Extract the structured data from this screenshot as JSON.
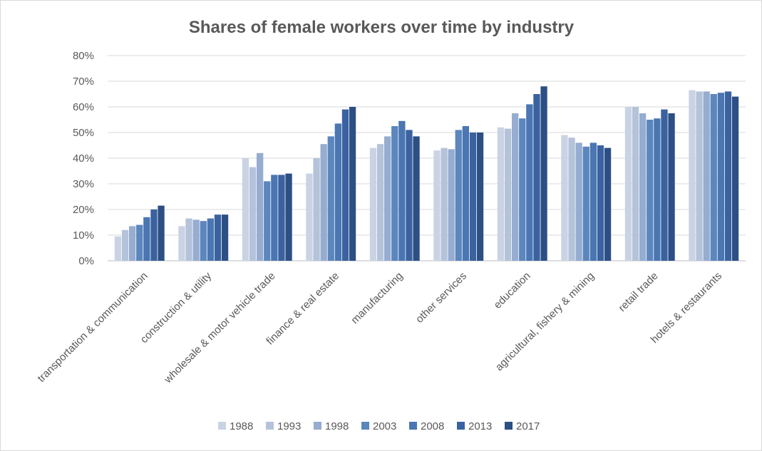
{
  "chart_data": {
    "type": "bar",
    "title": "Shares of female workers over time by industry",
    "xlabel": "",
    "ylabel": "",
    "ylim": [
      0,
      0.8
    ],
    "yticks": [
      0,
      0.1,
      0.2,
      0.3,
      0.4,
      0.5,
      0.6,
      0.7,
      0.8
    ],
    "ytick_labels": [
      "0%",
      "10%",
      "20%",
      "30%",
      "40%",
      "50%",
      "60%",
      "70%",
      "80%"
    ],
    "grid": true,
    "legend_position": "bottom",
    "categories": [
      "transportation & communication",
      "construction & utility",
      "wholesale & motor vehicle trade",
      "finance & real estate",
      "manufacturing",
      "other services",
      "education",
      "agricultural, fishery & mining",
      "retail trade",
      "hotels & restaurants"
    ],
    "series": [
      {
        "name": "1988",
        "color": "#c9d3e3",
        "values": [
          0.095,
          0.135,
          0.4,
          0.34,
          0.44,
          0.43,
          0.52,
          0.49,
          0.6,
          0.665
        ]
      },
      {
        "name": "1993",
        "color": "#b4c2da",
        "values": [
          0.12,
          0.165,
          0.365,
          0.4,
          0.455,
          0.44,
          0.515,
          0.48,
          0.6,
          0.66
        ]
      },
      {
        "name": "1998",
        "color": "#96acd0",
        "values": [
          0.135,
          0.16,
          0.42,
          0.455,
          0.485,
          0.435,
          0.575,
          0.46,
          0.575,
          0.66
        ]
      },
      {
        "name": "2003",
        "color": "#5c86be",
        "values": [
          0.14,
          0.155,
          0.31,
          0.485,
          0.525,
          0.51,
          0.555,
          0.445,
          0.55,
          0.65
        ]
      },
      {
        "name": "2008",
        "color": "#4a76b2",
        "values": [
          0.17,
          0.165,
          0.335,
          0.535,
          0.545,
          0.525,
          0.61,
          0.46,
          0.555,
          0.655
        ]
      },
      {
        "name": "2013",
        "color": "#3b62a0",
        "values": [
          0.2,
          0.18,
          0.335,
          0.59,
          0.51,
          0.5,
          0.65,
          0.45,
          0.59,
          0.66
        ]
      },
      {
        "name": "2017",
        "color": "#2c4f85",
        "values": [
          0.215,
          0.18,
          0.34,
          0.6,
          0.485,
          0.5,
          0.68,
          0.44,
          0.575,
          0.64
        ]
      }
    ]
  }
}
